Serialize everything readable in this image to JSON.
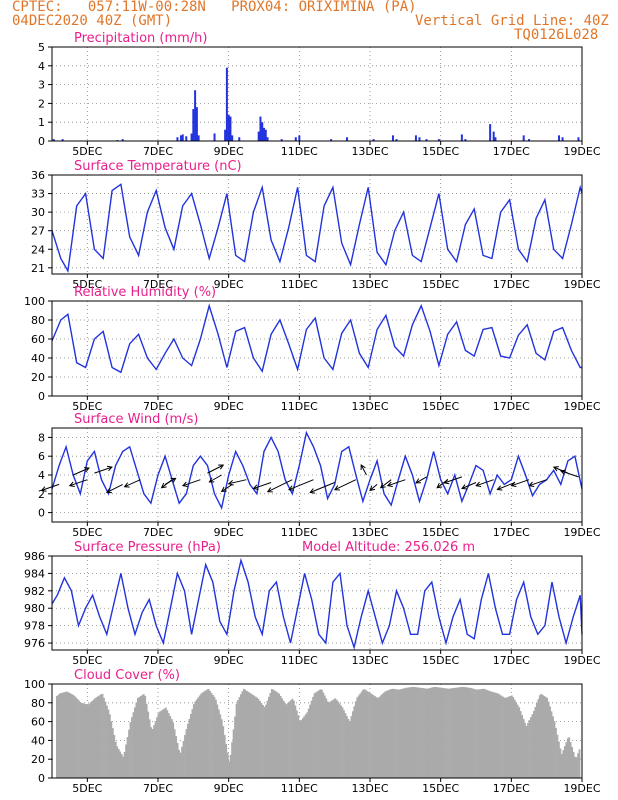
{
  "header": {
    "line1": "CPTEC:   057:11W-00:28N   PROX04: ORIXIMINA (PA)",
    "line2": "04DEC2020 40Z (GMT)",
    "grid_note": "Vertical Grid Line: 40Z",
    "code": "TQ0126L028"
  },
  "colors": {
    "header": "#e0762a",
    "title": "#e8208c",
    "series": "#2233dd",
    "cloud": "#aaaaaa",
    "grid": "#888888"
  },
  "x_ticks": [
    "5DEC",
    "7DEC",
    "9DEC",
    "11DEC",
    "13DEC",
    "15DEC",
    "17DEC",
    "19DEC"
  ],
  "chart_data": [
    {
      "type": "bar",
      "title": "Precipitation (mm/h)",
      "ylim": [
        0,
        5
      ],
      "yticks": [
        0,
        1,
        2,
        3,
        4,
        5
      ],
      "xlabel": "",
      "ylabel": "",
      "x_unit": "days since 04DEC2020",
      "x": [
        4.05,
        4.3,
        5.85,
        6.0,
        7.55,
        7.65,
        7.7,
        7.8,
        7.95,
        8.0,
        8.05,
        8.1,
        8.15,
        8.6,
        8.9,
        8.95,
        9.0,
        9.05,
        9.1,
        9.3,
        9.85,
        9.9,
        9.95,
        10.0,
        10.05,
        10.1,
        10.5,
        10.9,
        11.0,
        11.9,
        12.35,
        13.1,
        13.65,
        13.75,
        14.3,
        14.4,
        14.6,
        14.95,
        15.6,
        15.7,
        16.4,
        16.5,
        16.55,
        17.35,
        17.5,
        18.35,
        18.45,
        18.9
      ],
      "values": [
        0.1,
        0.1,
        0.05,
        0.1,
        0.2,
        0.3,
        0.35,
        0.25,
        0.4,
        1.7,
        2.7,
        1.8,
        0.3,
        0.4,
        0.6,
        3.9,
        1.4,
        1.3,
        0.3,
        0.2,
        0.5,
        1.3,
        1.0,
        0.7,
        0.6,
        0.2,
        0.1,
        0.2,
        0.3,
        0.1,
        0.2,
        0.1,
        0.3,
        0.1,
        0.3,
        0.2,
        0.1,
        0.1,
        0.35,
        0.1,
        0.9,
        0.5,
        0.2,
        0.3,
        0.1,
        0.3,
        0.2,
        0.2
      ]
    },
    {
      "type": "line",
      "title": "Surface Temperature (nC)",
      "ylim": [
        20,
        36
      ],
      "yticks": [
        21,
        24,
        27,
        30,
        33,
        36
      ],
      "x_unit": "days since 04DEC2020",
      "x": [
        4.0,
        4.25,
        4.45,
        4.7,
        4.95,
        5.2,
        5.45,
        5.7,
        5.95,
        6.2,
        6.45,
        6.7,
        6.95,
        7.2,
        7.45,
        7.7,
        7.95,
        8.2,
        8.45,
        8.7,
        8.95,
        9.2,
        9.45,
        9.7,
        9.95,
        10.2,
        10.45,
        10.7,
        10.95,
        11.2,
        11.45,
        11.7,
        11.95,
        12.2,
        12.45,
        12.7,
        12.95,
        13.2,
        13.45,
        13.7,
        13.95,
        14.2,
        14.45,
        14.7,
        14.95,
        15.2,
        15.45,
        15.7,
        15.95,
        16.2,
        16.45,
        16.7,
        16.95,
        17.2,
        17.45,
        17.7,
        17.95,
        18.2,
        18.45,
        18.7,
        18.95,
        19.0
      ],
      "values": [
        27,
        22.5,
        20.5,
        31,
        33,
        24,
        22.5,
        33.5,
        34.5,
        26,
        23,
        30,
        33.5,
        27.5,
        24,
        31,
        33,
        28,
        22.5,
        27.5,
        33,
        23,
        22,
        30,
        34,
        25.5,
        22,
        27.5,
        34,
        23,
        22,
        31,
        34,
        25,
        21.5,
        28,
        34,
        23.5,
        21.5,
        27,
        30,
        23,
        22,
        27.5,
        33,
        24,
        22,
        28,
        30.5,
        23,
        22.5,
        30,
        32,
        24,
        22,
        29,
        32,
        24,
        22.5,
        28,
        34,
        33
      ]
    },
    {
      "type": "line",
      "title": "Relative Humidity (%)",
      "ylim": [
        0,
        100
      ],
      "yticks": [
        0,
        20,
        40,
        60,
        80,
        100
      ],
      "x_unit": "days since 04DEC2020",
      "x": [
        4.0,
        4.25,
        4.45,
        4.7,
        4.95,
        5.2,
        5.45,
        5.7,
        5.95,
        6.2,
        6.45,
        6.7,
        6.95,
        7.2,
        7.45,
        7.7,
        7.95,
        8.2,
        8.45,
        8.7,
        8.95,
        9.2,
        9.45,
        9.7,
        9.95,
        10.2,
        10.45,
        10.7,
        10.95,
        11.2,
        11.45,
        11.7,
        11.95,
        12.2,
        12.45,
        12.7,
        12.95,
        13.2,
        13.45,
        13.7,
        13.95,
        14.2,
        14.45,
        14.7,
        14.95,
        15.2,
        15.45,
        15.7,
        15.95,
        16.2,
        16.45,
        16.7,
        16.95,
        17.2,
        17.45,
        17.7,
        17.95,
        18.2,
        18.45,
        18.7,
        18.95,
        19.0
      ],
      "values": [
        58,
        80,
        86,
        35,
        30,
        60,
        68,
        30,
        25,
        55,
        65,
        40,
        28,
        45,
        60,
        40,
        32,
        60,
        95,
        65,
        30,
        68,
        72,
        40,
        26,
        65,
        80,
        55,
        28,
        70,
        82,
        40,
        28,
        66,
        80,
        45,
        30,
        70,
        85,
        52,
        42,
        75,
        95,
        68,
        32,
        65,
        78,
        48,
        42,
        70,
        72,
        42,
        40,
        64,
        75,
        45,
        38,
        68,
        72,
        48,
        30,
        30
      ]
    },
    {
      "type": "line",
      "title": "Surface Wind (m/s)",
      "ylim": [
        -1,
        9
      ],
      "yticks": [
        0,
        2,
        4,
        6,
        8
      ],
      "x_unit": "days since 04DEC2020",
      "x": [
        4.0,
        4.2,
        4.4,
        4.6,
        4.8,
        5.0,
        5.2,
        5.4,
        5.6,
        5.8,
        6.0,
        6.2,
        6.4,
        6.6,
        6.8,
        7.0,
        7.2,
        7.4,
        7.6,
        7.8,
        8.0,
        8.2,
        8.4,
        8.6,
        8.8,
        9.0,
        9.2,
        9.4,
        9.6,
        9.8,
        10.0,
        10.2,
        10.4,
        10.6,
        10.8,
        11.0,
        11.2,
        11.4,
        11.6,
        11.8,
        12.0,
        12.2,
        12.4,
        12.6,
        12.8,
        13.0,
        13.2,
        13.4,
        13.6,
        13.8,
        14.0,
        14.2,
        14.4,
        14.6,
        14.8,
        15.0,
        15.2,
        15.4,
        15.6,
        15.8,
        16.0,
        16.2,
        16.4,
        16.6,
        16.8,
        17.0,
        17.2,
        17.4,
        17.6,
        17.8,
        18.0,
        18.2,
        18.4,
        18.6,
        18.8,
        19.0
      ],
      "values": [
        2.5,
        5,
        7,
        4,
        2,
        5.5,
        6.5,
        3.5,
        2,
        5,
        6.5,
        7,
        4.5,
        2,
        1,
        4,
        6,
        3.5,
        1,
        2,
        5,
        6,
        5,
        2,
        0.5,
        4,
        6.5,
        5,
        3,
        2,
        6.5,
        8,
        6.5,
        3.5,
        2,
        5,
        8.5,
        7,
        5,
        1.5,
        3,
        6.5,
        7,
        4,
        1.2,
        3.5,
        5.5,
        2,
        0.8,
        3.5,
        6,
        4,
        1.2,
        3.5,
        6.5,
        3.5,
        2,
        4,
        1.2,
        3,
        5,
        4.5,
        2,
        4,
        3,
        3.5,
        6,
        4,
        1.8,
        3,
        3.5,
        4.5,
        3,
        5.5,
        6,
        2.5
      ],
      "arrows": [
        {
          "x": 4.2,
          "y": 3.0,
          "dx": -0.5,
          "dy": -0.3
        },
        {
          "x": 4.6,
          "y": 4.0,
          "dx": 0.45,
          "dy": 0.35
        },
        {
          "x": 5.0,
          "y": 3.5,
          "dx": -0.5,
          "dy": -0.3
        },
        {
          "x": 5.2,
          "y": 4.2,
          "dx": 0.5,
          "dy": 0.3
        },
        {
          "x": 6.0,
          "y": 3.0,
          "dx": -0.45,
          "dy": -0.4
        },
        {
          "x": 6.5,
          "y": 3.5,
          "dx": -0.45,
          "dy": -0.35
        },
        {
          "x": 7.2,
          "y": 3.0,
          "dx": 0.3,
          "dy": 0.3
        },
        {
          "x": 7.4,
          "y": 3.5,
          "dx": -0.3,
          "dy": -0.4
        },
        {
          "x": 8.2,
          "y": 3.5,
          "dx": -0.5,
          "dy": -0.3
        },
        {
          "x": 8.4,
          "y": 4.2,
          "dx": 0.45,
          "dy": 0.4
        },
        {
          "x": 8.8,
          "y": 4.0,
          "dx": -0.35,
          "dy": -0.35
        },
        {
          "x": 9.1,
          "y": 3.0,
          "dx": -0.3,
          "dy": -0.35
        },
        {
          "x": 9.5,
          "y": 3.5,
          "dx": -0.5,
          "dy": -0.2
        },
        {
          "x": 10.2,
          "y": 3.2,
          "dx": -0.5,
          "dy": -0.3
        },
        {
          "x": 10.8,
          "y": 3.5,
          "dx": -0.7,
          "dy": -0.6
        },
        {
          "x": 11.4,
          "y": 3.5,
          "dx": -0.7,
          "dy": -0.5
        },
        {
          "x": 12.0,
          "y": 3.2,
          "dx": -0.7,
          "dy": -0.5
        },
        {
          "x": 12.6,
          "y": 3.5,
          "dx": -0.6,
          "dy": -0.5
        },
        {
          "x": 12.9,
          "y": 4.0,
          "dx": -0.15,
          "dy": 0.5
        },
        {
          "x": 13.2,
          "y": 3.0,
          "dx": -0.2,
          "dy": -0.3
        },
        {
          "x": 13.6,
          "y": 3.5,
          "dx": -0.3,
          "dy": -0.4
        },
        {
          "x": 14.0,
          "y": 3.5,
          "dx": -0.5,
          "dy": -0.3
        },
        {
          "x": 14.6,
          "y": 3.8,
          "dx": -0.3,
          "dy": -0.3
        },
        {
          "x": 15.2,
          "y": 3.5,
          "dx": -0.3,
          "dy": -0.4
        },
        {
          "x": 15.6,
          "y": 3.8,
          "dx": -0.5,
          "dy": -0.3
        },
        {
          "x": 16.0,
          "y": 3.2,
          "dx": -0.4,
          "dy": -0.3
        },
        {
          "x": 16.5,
          "y": 3.5,
          "dx": -0.5,
          "dy": -0.3
        },
        {
          "x": 17.1,
          "y": 3.2,
          "dx": -0.5,
          "dy": -0.35
        },
        {
          "x": 17.5,
          "y": 3.5,
          "dx": -0.5,
          "dy": -0.3
        },
        {
          "x": 18.0,
          "y": 3.5,
          "dx": -0.5,
          "dy": -0.3
        },
        {
          "x": 18.6,
          "y": 4.2,
          "dx": -0.4,
          "dy": 0.3
        },
        {
          "x": 18.9,
          "y": 3.8,
          "dx": -0.5,
          "dy": 0.3
        }
      ]
    },
    {
      "type": "line",
      "title": "Surface Pressure (hPa)",
      "note": "Model Altitude: 256.026 m",
      "ylim": [
        975.2,
        986
      ],
      "yticks": [
        976,
        978,
        980,
        982,
        984,
        986
      ],
      "x_unit": "days since 04DEC2020",
      "x": [
        4.0,
        4.15,
        4.35,
        4.55,
        4.75,
        4.95,
        5.15,
        5.35,
        5.55,
        5.75,
        5.95,
        6.15,
        6.35,
        6.55,
        6.75,
        6.95,
        7.15,
        7.35,
        7.55,
        7.75,
        7.95,
        8.15,
        8.35,
        8.55,
        8.75,
        8.95,
        9.15,
        9.35,
        9.55,
        9.75,
        9.95,
        10.15,
        10.35,
        10.55,
        10.75,
        10.95,
        11.15,
        11.35,
        11.55,
        11.75,
        11.95,
        12.15,
        12.35,
        12.55,
        12.75,
        12.95,
        13.15,
        13.35,
        13.55,
        13.75,
        13.95,
        14.15,
        14.35,
        14.55,
        14.75,
        14.95,
        15.15,
        15.35,
        15.55,
        15.75,
        15.95,
        16.15,
        16.35,
        16.55,
        16.75,
        16.95,
        17.15,
        17.35,
        17.55,
        17.75,
        17.95,
        18.15,
        18.35,
        18.55,
        18.75,
        18.95,
        19.0
      ],
      "values": [
        980.5,
        981.5,
        983.5,
        982,
        978,
        980,
        981.5,
        979,
        977,
        980.5,
        984,
        980,
        977,
        979.5,
        981,
        978,
        976,
        980,
        984,
        982,
        977,
        981,
        985,
        983,
        978.5,
        977,
        982,
        985.5,
        983,
        979,
        977,
        982,
        983,
        979,
        976,
        980,
        984,
        981,
        977,
        976,
        983,
        984,
        978,
        975.5,
        979,
        982,
        979,
        976,
        978,
        982,
        980,
        977,
        977,
        982,
        983,
        979,
        976,
        979,
        981,
        977,
        976.5,
        981,
        984,
        980,
        977,
        977,
        981,
        983,
        979,
        977,
        978,
        983,
        979,
        976,
        979,
        981.5,
        977
      ]
    },
    {
      "type": "area",
      "title": "Cloud Cover (%)",
      "ylim": [
        0,
        100
      ],
      "yticks": [
        0,
        20,
        40,
        60,
        80,
        100
      ],
      "x_unit": "days since 04DEC2020",
      "x": [
        4.05,
        4.2,
        4.4,
        4.6,
        4.8,
        5.0,
        5.2,
        5.4,
        5.6,
        5.8,
        6.0,
        6.2,
        6.4,
        6.6,
        6.8,
        7.0,
        7.2,
        7.4,
        7.6,
        7.8,
        8.0,
        8.2,
        8.4,
        8.6,
        8.8,
        9.0,
        9.2,
        9.4,
        9.6,
        9.8,
        10.0,
        10.2,
        10.4,
        10.6,
        10.8,
        11.0,
        11.2,
        11.4,
        11.6,
        11.8,
        12.0,
        12.2,
        12.4,
        12.6,
        12.8,
        13.0,
        13.2,
        13.4,
        13.6,
        13.8,
        14.0,
        14.2,
        14.4,
        14.6,
        14.8,
        15.0,
        15.2,
        15.4,
        15.6,
        15.8,
        16.0,
        16.2,
        16.4,
        16.6,
        16.8,
        17.0,
        17.2,
        17.4,
        17.6,
        17.8,
        18.0,
        18.2,
        18.4,
        18.6,
        18.8,
        18.95
      ],
      "values": [
        85,
        90,
        92,
        88,
        80,
        78,
        85,
        90,
        70,
        35,
        22,
        60,
        85,
        90,
        50,
        70,
        75,
        60,
        25,
        55,
        80,
        90,
        95,
        85,
        60,
        15,
        80,
        95,
        90,
        85,
        75,
        95,
        90,
        78,
        85,
        60,
        70,
        90,
        95,
        80,
        85,
        75,
        60,
        85,
        95,
        90,
        85,
        92,
        95,
        94,
        96,
        97,
        96,
        95,
        97,
        96,
        95,
        96,
        97,
        96,
        94,
        95,
        92,
        90,
        85,
        88,
        75,
        55,
        70,
        90,
        85,
        60,
        25,
        45,
        20,
        35
      ]
    }
  ]
}
